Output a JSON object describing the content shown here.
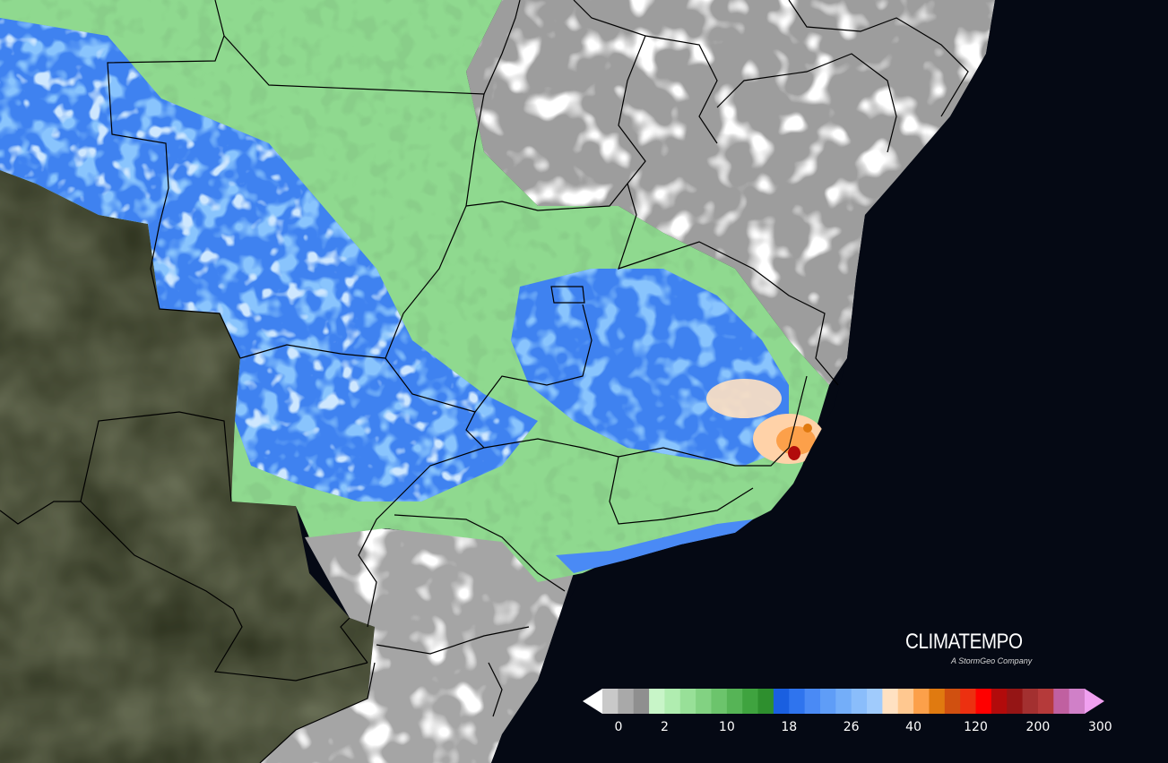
{
  "brand": {
    "name": "CLIMATEMPO",
    "tagline": "A StormGeo Company"
  },
  "colors": {
    "ocean": "#050914",
    "satellite_land": "#2f3420",
    "rain_zero": "#ffffff",
    "boundary": "#000000"
  },
  "legend": {
    "colors": [
      "#ffffff",
      "#c9c9c9",
      "#a9a9a9",
      "#8f8f8f",
      "#c8f5c8",
      "#b0edb0",
      "#98e098",
      "#82d282",
      "#6cc46c",
      "#56b456",
      "#3fa33f",
      "#2e8f2e",
      "#1a5fe0",
      "#2f74ee",
      "#4a8af5",
      "#5f9df7",
      "#74aef9",
      "#8abdfb",
      "#a0cbfc",
      "#ffe1c2",
      "#ffc890",
      "#fca04a",
      "#e07a10",
      "#d05010",
      "#ec3010",
      "#ff0000",
      "#b20b0b",
      "#951515",
      "#a33030",
      "#b53a3a",
      "#c060a0",
      "#d080c8",
      "#f0a0f0"
    ],
    "ticks": [
      "0",
      "2",
      "10",
      "18",
      "26",
      "40",
      "120",
      "200",
      "300"
    ],
    "tick_color_index": [
      0,
      4,
      8,
      12,
      16,
      20,
      24,
      28,
      32
    ]
  }
}
